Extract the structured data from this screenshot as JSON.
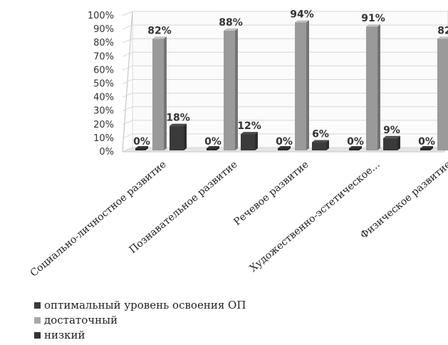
{
  "chart_data": {
    "type": "bar",
    "categories": [
      "Социально-личностное развитие",
      "Познавательное развитие",
      "Речевое развитие",
      "Художественно-эстетическое...",
      "Физическое развитие"
    ],
    "series": [
      {
        "name": "оптимальный уровень освоения ОП",
        "values": [
          0,
          0,
          0,
          0,
          0
        ],
        "labels": [
          "0%",
          "0%",
          "0%",
          "0%",
          "0%"
        ],
        "color": "#2b2b2b"
      },
      {
        "name": "достаточный",
        "values": [
          82,
          88,
          94,
          91,
          82
        ],
        "labels": [
          "82%",
          "88%",
          "94%",
          "91%",
          "82"
        ],
        "color": "#9a9a9a"
      },
      {
        "name": "низкий",
        "values": [
          18,
          12,
          6,
          9,
          null
        ],
        "labels": [
          "18%",
          "12%",
          "6%",
          "9%",
          ""
        ],
        "color": "#3a3a3a"
      }
    ],
    "y_ticks": [
      "0%",
      "10%",
      "20%",
      "30%",
      "40%",
      "50%",
      "60%",
      "70%",
      "80%",
      "90%",
      "100%"
    ],
    "ylim": [
      0,
      100
    ],
    "grid": true,
    "legend_position": "bottom-left",
    "title": "",
    "xlabel": "",
    "ylabel": ""
  }
}
